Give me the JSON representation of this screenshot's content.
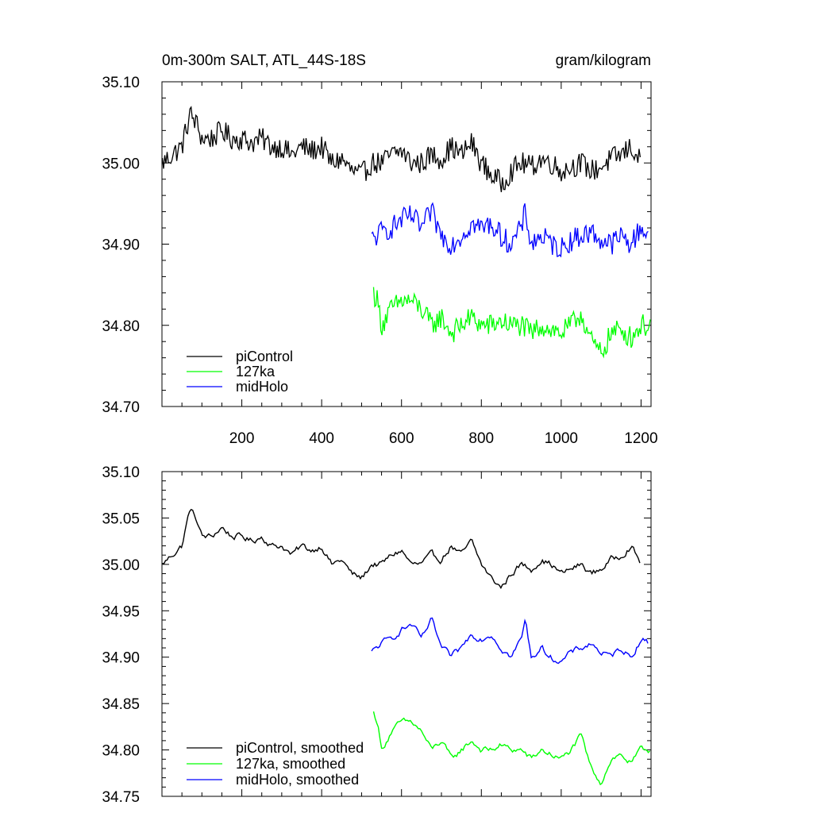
{
  "chart_data": [
    {
      "type": "line",
      "title": "0m-300m SALT, ATL_44S-18S",
      "units": "gram/kilogram",
      "xlabel": "",
      "ylabel": "",
      "xlim": [
        0,
        1225
      ],
      "ylim": [
        34.7,
        35.1
      ],
      "x_ticks": [
        200,
        400,
        600,
        800,
        1000,
        1200
      ],
      "x_tick_labels": [
        "200",
        "400",
        "600",
        "800",
        "1000",
        "1200"
      ],
      "y_ticks": [
        34.7,
        34.8,
        34.9,
        35.0,
        35.1
      ],
      "y_tick_labels": [
        "34.70",
        "34.80",
        "34.90",
        "35.00",
        "35.10"
      ],
      "grid": false,
      "legend_position": "bottom-left",
      "series": [
        {
          "name": "piControl",
          "color": "#000000",
          "x": [
            1,
            25,
            50,
            60,
            70,
            85,
            100,
            125,
            150,
            175,
            200,
            225,
            250,
            275,
            300,
            325,
            350,
            375,
            400,
            425,
            450,
            475,
            500,
            525,
            550,
            575,
            600,
            625,
            650,
            675,
            700,
            725,
            750,
            775,
            800,
            825,
            850,
            875,
            900,
            925,
            950,
            975,
            1000,
            1025,
            1050,
            1075,
            1100,
            1125,
            1150,
            1175,
            1200
          ],
          "y": [
            35.0,
            35.01,
            35.02,
            35.04,
            35.06,
            35.05,
            35.03,
            35.03,
            35.04,
            35.03,
            35.03,
            35.025,
            35.03,
            35.02,
            35.02,
            35.01,
            35.02,
            35.015,
            35.02,
            35.0,
            35.005,
            34.99,
            34.985,
            35.0,
            35.0,
            35.01,
            35.015,
            35.0,
            35.0,
            35.01,
            35.005,
            35.02,
            35.01,
            35.025,
            35.0,
            34.985,
            34.975,
            34.99,
            35.0,
            34.995,
            35.005,
            35.0,
            34.99,
            34.995,
            35.0,
            34.99,
            34.995,
            35.005,
            35.01,
            35.02,
            35.0
          ]
        },
        {
          "name": "127ka",
          "color": "#00ff00",
          "x": [
            530,
            540,
            550,
            575,
            600,
            625,
            650,
            675,
            700,
            725,
            750,
            775,
            800,
            825,
            850,
            875,
            900,
            925,
            950,
            975,
            1000,
            1025,
            1050,
            1075,
            1100,
            1125,
            1150,
            1175,
            1200,
            1225
          ],
          "y": [
            34.84,
            34.83,
            34.8,
            34.82,
            34.83,
            34.83,
            34.82,
            34.8,
            34.81,
            34.79,
            34.8,
            34.81,
            34.8,
            34.8,
            34.805,
            34.8,
            34.8,
            34.79,
            34.8,
            34.795,
            34.79,
            34.8,
            34.815,
            34.78,
            34.765,
            34.79,
            34.795,
            34.785,
            34.8,
            34.8
          ]
        },
        {
          "name": "midHolo",
          "color": "#0000ff",
          "x": [
            525,
            550,
            575,
            600,
            625,
            650,
            675,
            700,
            725,
            750,
            775,
            800,
            825,
            850,
            875,
            900,
            910,
            925,
            950,
            975,
            1000,
            1025,
            1050,
            1075,
            1100,
            1125,
            1150,
            1175,
            1200,
            1220
          ],
          "y": [
            34.905,
            34.915,
            34.92,
            34.93,
            34.935,
            34.92,
            34.94,
            34.91,
            34.9,
            34.91,
            34.925,
            34.92,
            34.925,
            34.91,
            34.9,
            34.92,
            34.94,
            34.9,
            34.91,
            34.9,
            34.895,
            34.905,
            34.91,
            34.915,
            34.905,
            34.9,
            34.91,
            34.9,
            34.92,
            34.915
          ]
        }
      ]
    },
    {
      "type": "line",
      "title": "",
      "xlabel": "",
      "ylabel": "",
      "xlim": [
        0,
        1225
      ],
      "ylim": [
        34.75,
        35.1
      ],
      "x_ticks": [
        200,
        400,
        600,
        800,
        1000,
        1200
      ],
      "x_tick_labels": [],
      "y_ticks": [
        34.75,
        34.8,
        34.85,
        34.9,
        34.95,
        35.0,
        35.05,
        35.1
      ],
      "y_tick_labels": [
        "34.75",
        "34.80",
        "34.85",
        "34.90",
        "34.95",
        "35.00",
        "35.05",
        "35.10"
      ],
      "grid": false,
      "legend_position": "bottom-left",
      "series": [
        {
          "name": "piControl, smoothed",
          "color": "#000000",
          "x": [
            1,
            25,
            50,
            60,
            70,
            85,
            100,
            125,
            150,
            175,
            200,
            225,
            250,
            275,
            300,
            325,
            350,
            375,
            400,
            425,
            450,
            475,
            500,
            525,
            550,
            575,
            600,
            625,
            650,
            675,
            700,
            725,
            750,
            775,
            800,
            825,
            850,
            875,
            900,
            925,
            950,
            975,
            1000,
            1025,
            1050,
            1075,
            1100,
            1125,
            1150,
            1175,
            1200
          ],
          "y": [
            35.0,
            35.01,
            35.02,
            35.04,
            35.06,
            35.05,
            35.03,
            35.03,
            35.04,
            35.03,
            35.03,
            35.025,
            35.03,
            35.02,
            35.02,
            35.01,
            35.02,
            35.015,
            35.02,
            35.0,
            35.005,
            34.99,
            34.985,
            35.0,
            35.0,
            35.01,
            35.015,
            35.0,
            35.0,
            35.01,
            35.005,
            35.02,
            35.01,
            35.025,
            35.0,
            34.985,
            34.975,
            34.99,
            35.0,
            34.995,
            35.005,
            35.0,
            34.99,
            34.995,
            35.0,
            34.99,
            34.995,
            35.005,
            35.01,
            35.02,
            35.0
          ]
        },
        {
          "name": "127ka, smoothed",
          "color": "#00ff00",
          "x": [
            530,
            540,
            550,
            575,
            600,
            625,
            650,
            675,
            700,
            725,
            750,
            775,
            800,
            825,
            850,
            875,
            900,
            925,
            950,
            975,
            1000,
            1025,
            1050,
            1075,
            1100,
            1125,
            1150,
            1175,
            1200,
            1225
          ],
          "y": [
            34.84,
            34.83,
            34.8,
            34.82,
            34.83,
            34.83,
            34.82,
            34.8,
            34.81,
            34.79,
            34.8,
            34.81,
            34.8,
            34.8,
            34.805,
            34.8,
            34.8,
            34.79,
            34.8,
            34.795,
            34.79,
            34.8,
            34.815,
            34.78,
            34.765,
            34.79,
            34.795,
            34.785,
            34.8,
            34.8
          ]
        },
        {
          "name": "midHolo, smoothed",
          "color": "#0000ff",
          "x": [
            525,
            550,
            575,
            600,
            625,
            650,
            675,
            700,
            725,
            750,
            775,
            800,
            825,
            850,
            875,
            900,
            910,
            925,
            950,
            975,
            1000,
            1025,
            1050,
            1075,
            1100,
            1125,
            1150,
            1175,
            1200,
            1220
          ],
          "y": [
            34.905,
            34.915,
            34.92,
            34.93,
            34.935,
            34.92,
            34.94,
            34.91,
            34.9,
            34.91,
            34.925,
            34.92,
            34.925,
            34.91,
            34.9,
            34.92,
            34.94,
            34.9,
            34.91,
            34.9,
            34.895,
            34.905,
            34.91,
            34.915,
            34.905,
            34.9,
            34.91,
            34.9,
            34.92,
            34.915
          ]
        }
      ]
    }
  ]
}
